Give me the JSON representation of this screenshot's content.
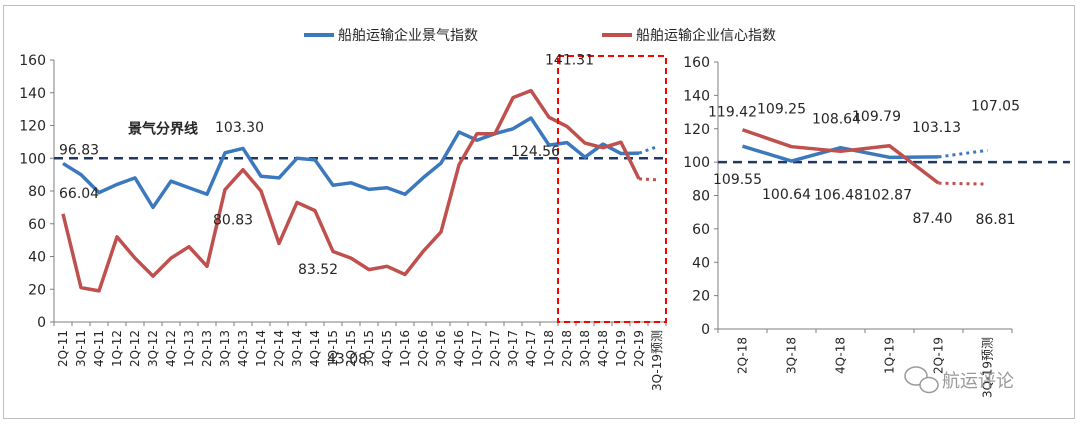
{
  "colors": {
    "blue": "#3c78be",
    "red": "#c0504d",
    "threshold": "#1f3864",
    "highlight_box": "#ff0000",
    "axis": "#7f7f7f"
  },
  "legend": [
    "船舶运输企业景气指数",
    "船舶运输企业信心指数"
  ],
  "watermark": "航运评论",
  "chart_data": [
    {
      "type": "line",
      "categories": [
        "2Q-11",
        "3Q-11",
        "4Q-11",
        "1Q-12",
        "2Q-12",
        "3Q-12",
        "4Q-12",
        "1Q-13",
        "2Q-13",
        "3Q-13",
        "4Q-13",
        "1Q-14",
        "2Q-14",
        "3Q-14",
        "4Q-14",
        "1Q-15",
        "2Q-15",
        "3Q-15",
        "4Q-15",
        "1Q-16",
        "2Q-16",
        "3Q-16",
        "4Q-16",
        "1Q-17",
        "2Q-17",
        "3Q-17",
        "4Q-17",
        "1Q-18",
        "2Q-18",
        "3Q-18",
        "4Q-18",
        "1Q-19",
        "2Q-19",
        "3Q-19预测"
      ],
      "ylim": [
        0,
        160
      ],
      "yticks": [
        0,
        20,
        40,
        60,
        80,
        100,
        120,
        140,
        160
      ],
      "series": [
        {
          "name": "船舶运输企业景气指数",
          "values": [
            96.83,
            90,
            79,
            84,
            88,
            70,
            86,
            82,
            78,
            103.3,
            106,
            89,
            88,
            100,
            99,
            83.52,
            85,
            81,
            82,
            78,
            88,
            97,
            116,
            111,
            115,
            118,
            124.56,
            108,
            109.55,
            100.64,
            108.64,
            102.87,
            103.13,
            107.05
          ],
          "forecast_from_index": 32
        },
        {
          "name": "船舶运输企业信心指数",
          "values": [
            66.04,
            21,
            19,
            52,
            39,
            28,
            39,
            46,
            34,
            80.83,
            93,
            80,
            48,
            73,
            68,
            43.08,
            39,
            32,
            34,
            29,
            43,
            55,
            96,
            115,
            115,
            137,
            141.31,
            125,
            119.42,
            109.25,
            106.48,
            109.79,
            87.4,
            86.81
          ],
          "forecast_from_index": 32
        }
      ],
      "threshold": {
        "value": 100,
        "label": "景气分界线"
      },
      "highlight_from": "2Q-18",
      "data_labels": [
        {
          "series": 0,
          "index": 0,
          "text": "96.83"
        },
        {
          "series": 1,
          "index": 0,
          "text": "66.04"
        },
        {
          "series": 0,
          "index": 9,
          "text": "103.30"
        },
        {
          "series": 1,
          "index": 9,
          "text": "80.83"
        },
        {
          "series": 0,
          "index": 15,
          "text": "83.52"
        },
        {
          "series": 1,
          "index": 15,
          "text": "43.08"
        },
        {
          "series": 1,
          "index": 26,
          "text": "141.31"
        },
        {
          "series": 0,
          "index": 26,
          "text": "124.56"
        }
      ]
    },
    {
      "type": "line",
      "categories": [
        "2Q-18",
        "3Q-18",
        "4Q-18",
        "1Q-19",
        "2Q-19",
        "3Q-19预测"
      ],
      "ylim": [
        0,
        160
      ],
      "yticks": [
        0,
        20,
        40,
        60,
        80,
        100,
        120,
        140,
        160
      ],
      "series": [
        {
          "name": "船舶运输企业景气指数",
          "values": [
            109.55,
            100.64,
            108.64,
            102.87,
            103.13,
            107.05
          ],
          "labels": [
            "109.55",
            "100.64",
            "108.64",
            "102.87",
            "103.13",
            "107.05"
          ],
          "forecast_from_index": 4
        },
        {
          "name": "船舶运输企业信心指数",
          "values": [
            119.42,
            109.25,
            106.48,
            109.79,
            87.4,
            86.81
          ],
          "labels": [
            "119.42",
            "109.25",
            "106.48",
            "109.79",
            "87.40",
            "86.81"
          ],
          "forecast_from_index": 4
        }
      ],
      "threshold": {
        "value": 100
      }
    }
  ]
}
